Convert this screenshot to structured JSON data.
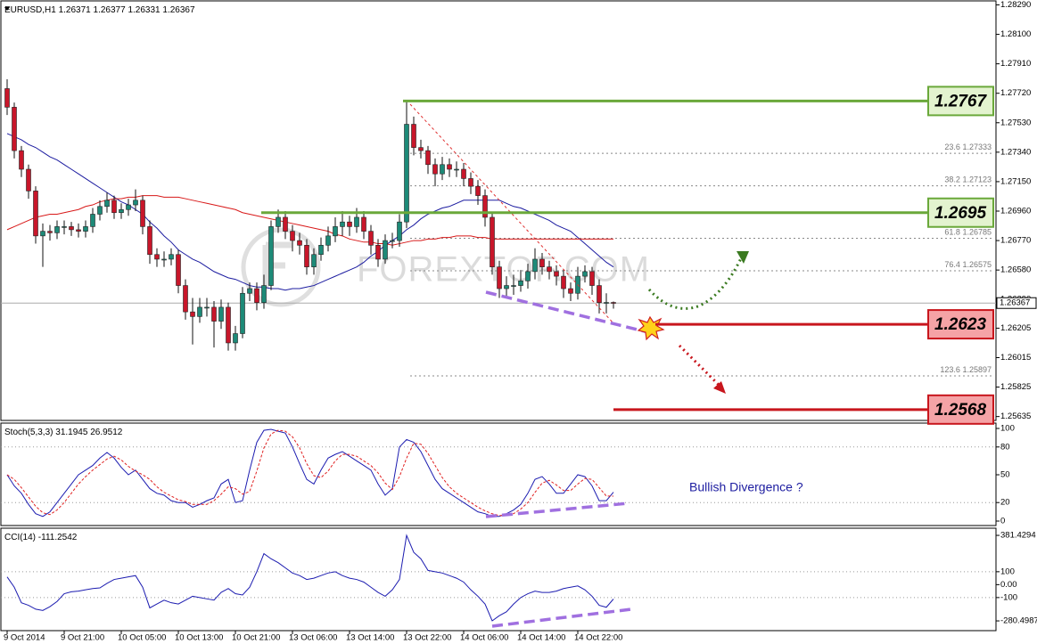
{
  "chart_data": [
    {
      "type": "candlestick",
      "title": "EURUSD,H1",
      "categories": [
        "9 Oct 2014",
        null,
        null,
        null,
        null,
        null,
        null,
        null,
        "9 Oct 21:00",
        null,
        null,
        null,
        null,
        null,
        null,
        null,
        "10 Oct 05:00",
        null,
        null,
        null,
        null,
        null,
        null,
        null,
        "10 Oct 13:00",
        null,
        null,
        null,
        null,
        null,
        null,
        null,
        "10 Oct 21:00",
        null,
        null,
        null,
        null,
        null,
        null,
        null,
        "13 Oct 06:00",
        null,
        null,
        null,
        null,
        null,
        null,
        null,
        "13 Oct 14:00",
        null,
        null,
        null,
        null,
        null,
        null,
        null,
        "13 Oct 22:00",
        null,
        null,
        null,
        null,
        null,
        null,
        null,
        "14 Oct 06:00",
        null,
        null,
        null,
        null,
        null,
        null,
        null,
        "14 Oct 14:00",
        null,
        null,
        null,
        null,
        null,
        null,
        null,
        "14 Oct 22:00",
        null,
        null,
        null,
        null,
        null
      ],
      "open": [
        1.2775,
        1.2763,
        1.2735,
        1.2723,
        1.2709,
        1.268,
        1.2683,
        1.2682,
        1.2686,
        1.2686,
        1.2684,
        1.2683,
        1.2686,
        1.2694,
        1.2699,
        1.2703,
        1.2695,
        1.2697,
        1.27,
        1.2703,
        1.2686,
        1.2668,
        1.2665,
        1.2665,
        1.2668,
        1.2648,
        1.2631,
        1.2628,
        1.2634,
        1.2634,
        1.2625,
        1.2634,
        1.2611,
        1.2617,
        1.2643,
        1.2646,
        1.2637,
        1.2648,
        1.2686,
        1.2692,
        1.2683,
        1.2677,
        1.2674,
        1.266,
        1.2668,
        1.2674,
        1.268,
        1.2686,
        1.2689,
        1.2686,
        1.2692,
        1.2683,
        1.2674,
        1.2665,
        1.2677,
        1.2677,
        1.2689,
        1.2752,
        1.2737,
        1.2735,
        1.2726,
        1.272,
        1.2726,
        1.2723,
        1.2723,
        1.2717,
        1.2712,
        1.2706,
        1.2692,
        1.266,
        1.2646,
        1.2648,
        1.2648,
        1.2651,
        1.2657,
        1.2665,
        1.266,
        1.2657,
        1.2654,
        1.2646,
        1.2643,
        1.2654,
        1.2657,
        1.2648,
        1.2637,
        1.26371
      ],
      "high": [
        1.2781,
        1.2766,
        1.2738,
        1.2726,
        1.2712,
        1.2688,
        1.2687,
        1.269,
        1.269,
        1.2689,
        1.2688,
        1.269,
        1.2698,
        1.2703,
        1.2708,
        1.2706,
        1.2701,
        1.2704,
        1.271,
        1.2706,
        1.269,
        1.2672,
        1.267,
        1.2672,
        1.2671,
        1.2652,
        1.264,
        1.264,
        1.264,
        1.2638,
        1.2639,
        1.2637,
        1.2622,
        1.2647,
        1.265,
        1.265,
        1.2655,
        1.269,
        1.2697,
        1.2696,
        1.2687,
        1.2682,
        1.2678,
        1.2672,
        1.2679,
        1.2686,
        1.2692,
        1.2696,
        1.2693,
        1.2698,
        1.2696,
        1.2687,
        1.2678,
        1.2681,
        1.2682,
        1.2694,
        1.2767,
        1.2757,
        1.2742,
        1.2738,
        1.273,
        1.2731,
        1.273,
        1.2728,
        1.2727,
        1.2721,
        1.2716,
        1.271,
        1.2695,
        1.2664,
        1.2654,
        1.2655,
        1.2658,
        1.2662,
        1.2672,
        1.2669,
        1.2664,
        1.2661,
        1.2658,
        1.265,
        1.266,
        1.2661,
        1.266,
        1.2652,
        1.2643,
        1.26377
      ],
      "low": [
        1.2758,
        1.273,
        1.2718,
        1.2704,
        1.2675,
        1.266,
        1.2677,
        1.2678,
        1.2681,
        1.268,
        1.2679,
        1.2679,
        1.2682,
        1.269,
        1.2695,
        1.2691,
        1.2691,
        1.2693,
        1.2696,
        1.2681,
        1.2662,
        1.266,
        1.266,
        1.2661,
        1.2643,
        1.2626,
        1.261,
        1.2624,
        1.2628,
        1.2608,
        1.262,
        1.2606,
        1.2606,
        1.2614,
        1.2638,
        1.2632,
        1.2633,
        1.2645,
        1.2682,
        1.2678,
        1.267,
        1.2668,
        1.2655,
        1.2655,
        1.2664,
        1.267,
        1.2676,
        1.268,
        1.268,
        1.2682,
        1.2678,
        1.2668,
        1.266,
        1.2662,
        1.2672,
        1.2673,
        1.2685,
        1.2732,
        1.273,
        1.272,
        1.2712,
        1.2716,
        1.2718,
        1.2718,
        1.2712,
        1.2707,
        1.27,
        1.2686,
        1.2655,
        1.264,
        1.264,
        1.2642,
        1.2644,
        1.2646,
        1.2652,
        1.2655,
        1.2652,
        1.2648,
        1.264,
        1.2638,
        1.2639,
        1.265,
        1.2642,
        1.263,
        1.263,
        1.26331
      ],
      "close": [
        1.2763,
        1.2735,
        1.2723,
        1.2709,
        1.268,
        1.2683,
        1.2682,
        1.2686,
        1.2686,
        1.2684,
        1.2683,
        1.2686,
        1.2694,
        1.2699,
        1.2703,
        1.2695,
        1.2697,
        1.27,
        1.2703,
        1.2686,
        1.2668,
        1.2665,
        1.2665,
        1.2668,
        1.2648,
        1.2631,
        1.2628,
        1.2634,
        1.2634,
        1.2625,
        1.2634,
        1.2611,
        1.2617,
        1.2643,
        1.2646,
        1.2637,
        1.2648,
        1.2686,
        1.2692,
        1.2683,
        1.2677,
        1.2674,
        1.266,
        1.2668,
        1.2674,
        1.268,
        1.2686,
        1.2689,
        1.2686,
        1.2692,
        1.2683,
        1.2674,
        1.2665,
        1.2677,
        1.2677,
        1.2689,
        1.2752,
        1.2737,
        1.2735,
        1.2726,
        1.272,
        1.2726,
        1.2723,
        1.2723,
        1.2717,
        1.2712,
        1.2706,
        1.2692,
        1.266,
        1.2646,
        1.2648,
        1.2648,
        1.2651,
        1.2657,
        1.2665,
        1.266,
        1.2657,
        1.2654,
        1.2646,
        1.2643,
        1.2654,
        1.2657,
        1.2648,
        1.2637,
        1.26371,
        1.26367
      ],
      "up_color": "#1d8a78",
      "down_color": "#c8162a",
      "lines": [
        {
          "color": "#1c1ca0",
          "values": [
            1.2746,
            1.2744,
            1.2742,
            1.2739,
            1.2737,
            1.2734,
            1.2731,
            1.2729,
            1.2726,
            1.2723,
            1.272,
            1.2717,
            1.2714,
            1.2711,
            1.2708,
            1.2705,
            1.2702,
            1.27,
            1.2697,
            1.2694,
            1.2689,
            1.2685,
            1.268,
            1.2676,
            1.2671,
            1.2668,
            1.2665,
            1.2663,
            1.266,
            1.2657,
            1.2655,
            1.2653,
            1.2652,
            1.265,
            1.2648,
            1.2647,
            1.2647,
            1.2646,
            1.2646,
            1.2645,
            1.2646,
            1.2646,
            1.2647,
            1.2648,
            1.265,
            1.2652,
            1.2654,
            1.2656,
            1.2658,
            1.266,
            1.2663,
            1.2667,
            1.267,
            1.2674,
            1.2677,
            1.268,
            1.2684,
            1.2687,
            1.2691,
            1.2694,
            1.2696,
            1.2698,
            1.2699,
            1.2701,
            1.2703,
            1.2703,
            1.2703,
            1.2703,
            1.2703,
            1.2703,
            1.2701,
            1.2699,
            1.2698,
            1.2696,
            1.2694,
            1.2692,
            1.269,
            1.2687,
            1.2685,
            1.2683,
            1.2679,
            1.2675,
            1.2671,
            1.2667,
            1.2663,
            1.266
          ]
        },
        {
          "color": "#d81818",
          "values": [
            1.2684,
            1.2686,
            1.2688,
            1.269,
            1.2692,
            1.2693,
            1.2694,
            1.2694,
            1.2695,
            1.2696,
            1.2697,
            1.2699,
            1.27,
            1.2702,
            1.2703,
            1.2704,
            1.2704,
            1.2705,
            1.2705,
            1.2706,
            1.2706,
            1.2706,
            1.2705,
            1.2705,
            1.2705,
            1.2704,
            1.2703,
            1.2702,
            1.2701,
            1.27,
            1.2699,
            1.2698,
            1.2697,
            1.2695,
            1.2694,
            1.2693,
            1.2692,
            1.2691,
            1.269,
            1.2689,
            1.2688,
            1.2687,
            1.2686,
            1.2685,
            1.2684,
            1.2683,
            1.2681,
            1.268,
            1.2678,
            1.2677,
            1.2676,
            1.2676,
            1.2675,
            1.2675,
            1.2674,
            1.2675,
            1.2676,
            1.2677,
            1.2677,
            1.2678,
            1.2678,
            1.2679,
            1.2679,
            1.268,
            1.268,
            1.268,
            1.2679,
            1.2679,
            1.2678,
            1.2678,
            1.2678,
            1.2678,
            1.2678,
            1.2678,
            1.2678,
            1.2678,
            1.2678,
            1.2678,
            1.2678,
            1.2678,
            1.2678,
            1.2678,
            1.2678,
            1.2678,
            1.2678,
            1.2678
          ]
        }
      ],
      "ylim": [
        1.2561,
        1.2831
      ],
      "yticks": [
        {
          "value": 1.2829,
          "label": "1.28290"
        },
        {
          "value": 1.281,
          "label": "1.28100"
        },
        {
          "value": 1.2791,
          "label": "1.27910"
        },
        {
          "value": 1.2772,
          "label": "1.27720"
        },
        {
          "value": 1.2753,
          "label": "1.27530"
        },
        {
          "value": 1.2734,
          "label": "1.27340"
        },
        {
          "value": 1.2715,
          "label": "1.27150"
        },
        {
          "value": 1.2696,
          "label": "1.26960"
        },
        {
          "value": 1.2677,
          "label": "1.26770"
        },
        {
          "value": 1.2658,
          "label": "1.26580"
        },
        {
          "value": 1.2639,
          "label": "1.26390"
        },
        1.26205,
        1.26015,
        1.25825,
        1.25635
      ],
      "levels": [
        {
          "value": 1.2767,
          "color": "#6aa83a",
          "fill": "#e3f3cf"
        },
        {
          "value": 1.2695,
          "color": "#6aa83a",
          "fill": "#e3f3cf"
        },
        {
          "value": 1.2623,
          "color": "#c8161d",
          "fill": "#f5a3a6"
        },
        {
          "value": 1.2568,
          "color": "#c8161d",
          "fill": "#f5a3a6"
        }
      ],
      "fibonacci": [
        {
          "level": 23.6,
          "price": 1.27333
        },
        {
          "level": 38.2,
          "price": 1.27123
        },
        {
          "level": 61.8,
          "price": 1.26785
        },
        {
          "level": 76.4,
          "price": 1.26575
        },
        {
          "level": 123.6,
          "price": 1.25897
        }
      ],
      "watermark": "FOREXTOF.COM"
    },
    {
      "type": "line",
      "title": "Stoch(5,3,3)",
      "series": [
        {
          "color": "#1c1cb0",
          "values": [
            50,
            38,
            30,
            18,
            8,
            5,
            10,
            20,
            30,
            40,
            50,
            55,
            60,
            68,
            74,
            68,
            58,
            50,
            55,
            45,
            35,
            30,
            28,
            22,
            20,
            20,
            15,
            18,
            22,
            25,
            40,
            45,
            20,
            22,
            55,
            85,
            98,
            99,
            97,
            95,
            80,
            62,
            45,
            40,
            55,
            68,
            72,
            75,
            70,
            65,
            60,
            55,
            40,
            28,
            35,
            80,
            88,
            85,
            75,
            60,
            45,
            35,
            30,
            25,
            20,
            15,
            10,
            8,
            5,
            5,
            8,
            12,
            18,
            30,
            45,
            48,
            40,
            30,
            30,
            40,
            50,
            48,
            38,
            22,
            22,
            31.1945
          ]
        },
        {
          "color": "#e02020",
          "dashed": true,
          "values": [
            50,
            45,
            36,
            26,
            16,
            9,
            7,
            12,
            20,
            30,
            40,
            48,
            55,
            61,
            67,
            70,
            66,
            59,
            54,
            50,
            45,
            37,
            31,
            27,
            23,
            21,
            18,
            18,
            18,
            22,
            29,
            37,
            35,
            29,
            32,
            54,
            79,
            94,
            98,
            97,
            91,
            79,
            62,
            49,
            47,
            54,
            65,
            72,
            72,
            70,
            65,
            60,
            52,
            41,
            34,
            48,
            68,
            84,
            83,
            73,
            60,
            47,
            37,
            30,
            25,
            20,
            15,
            11,
            8,
            6,
            6,
            8,
            13,
            20,
            31,
            41,
            44,
            39,
            33,
            33,
            40,
            46,
            45,
            36,
            27,
            26.9512
          ]
        }
      ],
      "ylim": [
        -4.8,
        104.8
      ],
      "yticks": [
        100,
        80,
        50,
        20,
        0
      ],
      "levels": [
        80,
        20
      ],
      "annotation": "Bullish Divergence ?"
    },
    {
      "type": "line",
      "title": "CCI(14)",
      "series": [
        {
          "color": "#1c1cb0",
          "values": [
            60,
            -20,
            -140,
            -160,
            -190,
            -200,
            -170,
            -130,
            -70,
            -55,
            -50,
            -40,
            -30,
            -25,
            10,
            40,
            50,
            60,
            70,
            -20,
            -180,
            -150,
            -120,
            -140,
            -150,
            -120,
            -90,
            -100,
            -110,
            -120,
            -60,
            -30,
            -70,
            -80,
            -20,
            100,
            240,
            200,
            170,
            130,
            90,
            70,
            40,
            50,
            70,
            90,
            100,
            70,
            50,
            40,
            20,
            -20,
            -60,
            -90,
            -40,
            40,
            381,
            250,
            200,
            110,
            100,
            90,
            70,
            50,
            20,
            -40,
            -90,
            -150,
            -280,
            -240,
            -210,
            -150,
            -100,
            -70,
            -50,
            -60,
            -60,
            -50,
            -30,
            -20,
            -10,
            -40,
            -90,
            -160,
            -175,
            -111.2542
          ]
        }
      ],
      "ylim": [
        -356,
        430
      ],
      "yticks": [
        381.4294,
        100,
        {
          "value": 0,
          "label": "0.00"
        },
        -100,
        -280.4987
      ],
      "levels": [
        100,
        -100
      ]
    }
  ]
}
